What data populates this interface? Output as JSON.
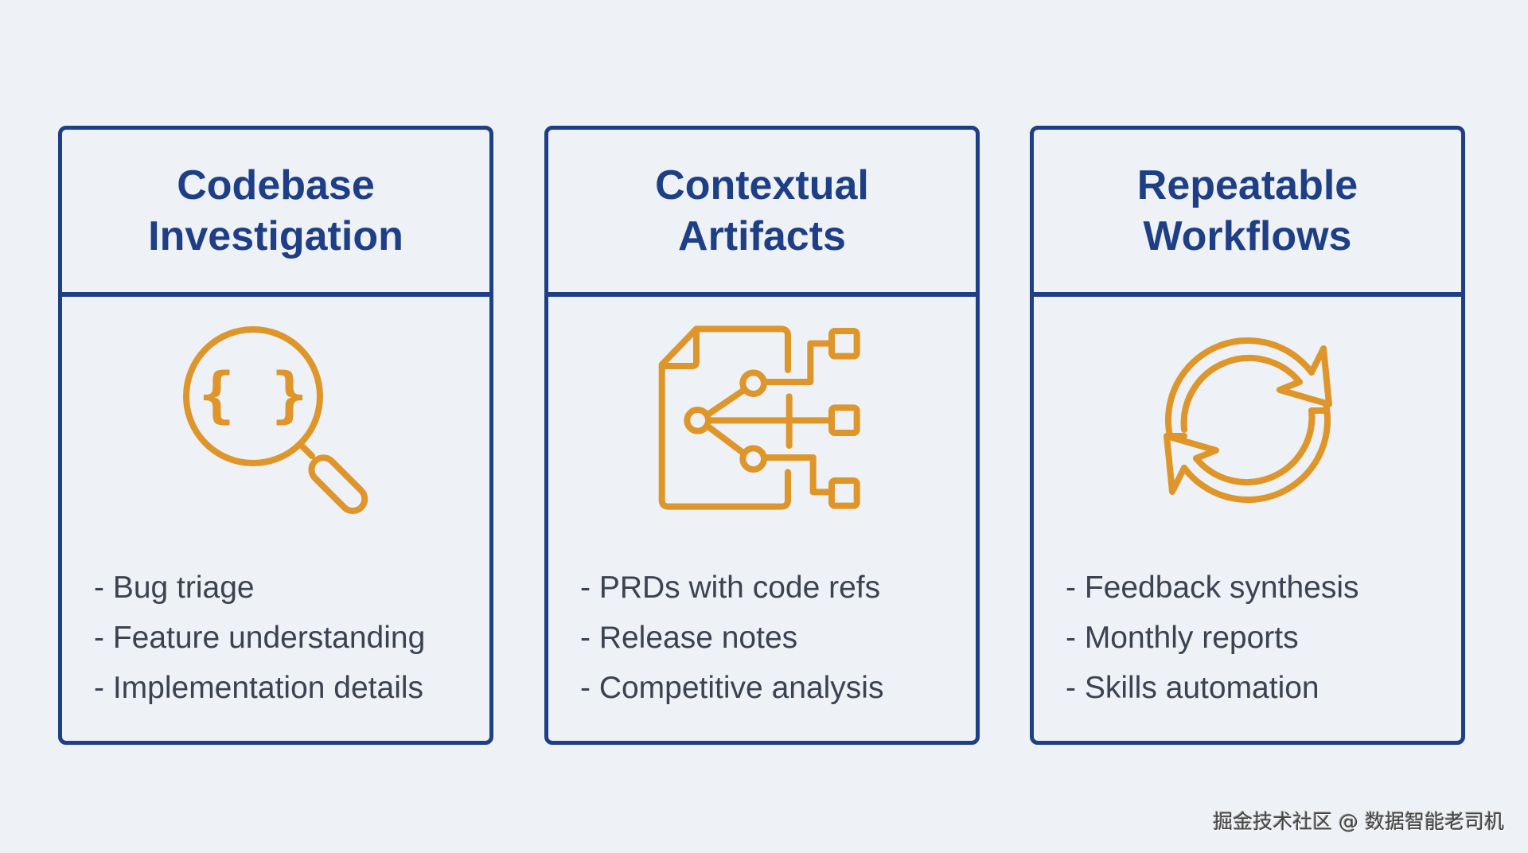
{
  "colors": {
    "primary": "#1e3f86",
    "accent": "#de962a",
    "background": "#eef1f5"
  },
  "cards": [
    {
      "title_lines": [
        "Codebase",
        "Investigation"
      ],
      "icon": "magnifier-code-braces-icon",
      "items": [
        "- Bug triage",
        "- Feature understanding",
        "- Implementation details"
      ]
    },
    {
      "title_lines": [
        "Contextual",
        "Artifacts"
      ],
      "icon": "document-network-icon",
      "items": [
        "- PRDs with code refs",
        "- Release notes",
        "- Competitive analysis"
      ]
    },
    {
      "title_lines": [
        "Repeatable",
        "Workflows"
      ],
      "icon": "cycle-arrows-icon",
      "items": [
        "- Feedback synthesis",
        "- Monthly reports",
        "- Skills automation"
      ]
    }
  ],
  "watermark": "掘金技术社区 @ 数据智能老司机"
}
